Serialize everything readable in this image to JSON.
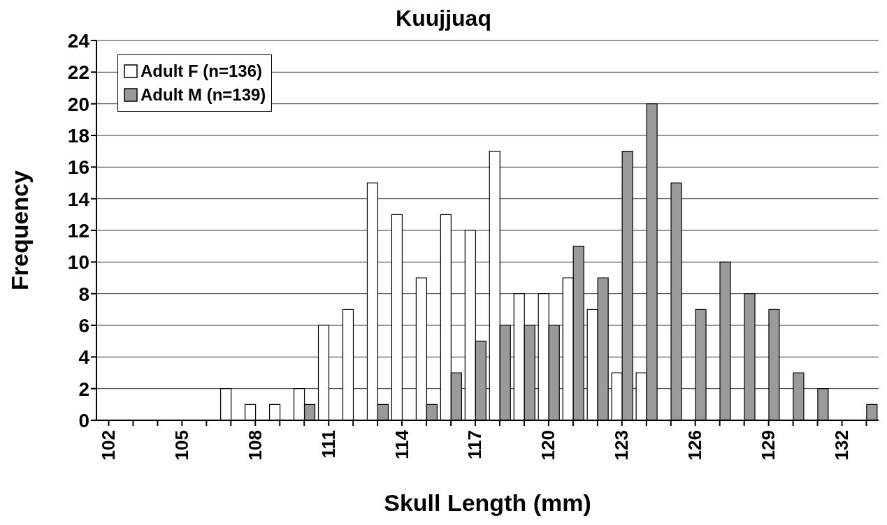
{
  "chart_data": {
    "type": "bar",
    "title": "Kuujjuaq",
    "xlabel": "Skull Length (mm)",
    "ylabel": "Frequency",
    "categories": [
      "102",
      null,
      null,
      "105",
      null,
      null,
      "108",
      null,
      null,
      "111",
      null,
      null,
      "114",
      null,
      null,
      "117",
      null,
      null,
      "120",
      null,
      null,
      "123",
      null,
      null,
      "126",
      null,
      null,
      "129",
      null,
      null,
      "132",
      null
    ],
    "series": [
      {
        "name": "Adult F (n=136)",
        "color": "#ffffff",
        "values": [
          0,
          0,
          0,
          0,
          0,
          2,
          1,
          1,
          2,
          6,
          7,
          15,
          13,
          9,
          13,
          12,
          17,
          8,
          8,
          9,
          7,
          3,
          3,
          0,
          0,
          0,
          0,
          0,
          0,
          0,
          0,
          0
        ]
      },
      {
        "name": "Adult M (n=139)",
        "color": "#9a9a9a",
        "values": [
          0,
          0,
          0,
          0,
          0,
          0,
          0,
          0,
          1,
          0,
          0,
          1,
          0,
          1,
          3,
          5,
          6,
          6,
          6,
          11,
          9,
          17,
          20,
          15,
          7,
          10,
          8,
          7,
          3,
          2,
          0,
          1
        ]
      }
    ],
    "ylim": [
      0,
      24
    ],
    "yticks": [
      0,
      2,
      4,
      6,
      8,
      10,
      12,
      14,
      16,
      18,
      20,
      22,
      24
    ],
    "grid": "y",
    "legend": "top left"
  }
}
